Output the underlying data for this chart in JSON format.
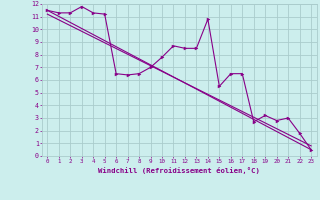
{
  "title": "",
  "xlabel": "Windchill (Refroidissement éolien,°C)",
  "bg_color": "#cceeed",
  "line_color": "#880088",
  "grid_color": "#aacccc",
  "xlim": [
    -0.5,
    23.5
  ],
  "ylim": [
    0,
    12
  ],
  "xticks": [
    0,
    1,
    2,
    3,
    4,
    5,
    6,
    7,
    8,
    9,
    10,
    11,
    12,
    13,
    14,
    15,
    16,
    17,
    18,
    19,
    20,
    21,
    22,
    23
  ],
  "yticks": [
    0,
    1,
    2,
    3,
    4,
    5,
    6,
    7,
    8,
    9,
    10,
    11,
    12
  ],
  "data_x": [
    0,
    1,
    2,
    3,
    4,
    5,
    6,
    7,
    8,
    9,
    10,
    11,
    12,
    13,
    14,
    15,
    16,
    17,
    18,
    19,
    20,
    21,
    22,
    23
  ],
  "data_y": [
    11.5,
    11.3,
    11.3,
    11.8,
    11.3,
    11.2,
    6.5,
    6.4,
    6.5,
    7.0,
    7.8,
    8.7,
    8.5,
    8.5,
    10.8,
    5.5,
    6.5,
    6.5,
    2.7,
    3.2,
    2.8,
    3.0,
    1.8,
    0.5
  ],
  "trend_x": [
    0,
    23
  ],
  "trend_y": [
    11.5,
    0.5
  ],
  "trend2_x": [
    0,
    23
  ],
  "trend2_y": [
    11.2,
    0.8
  ]
}
